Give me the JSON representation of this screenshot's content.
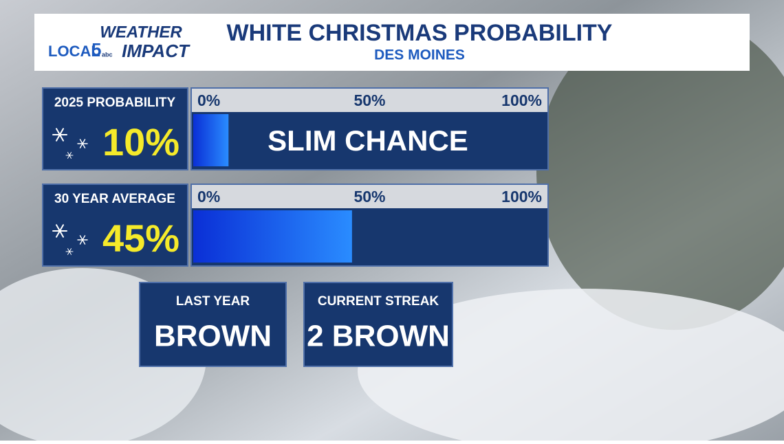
{
  "header": {
    "brand_top": "WEATHER",
    "brand_local": "LOCAL",
    "brand_number": "5",
    "brand_network": "abc",
    "brand_bottom": "IMPACT",
    "title": "WHITE CHRISTMAS PROBABILITY",
    "subtitle": "DES MOINES"
  },
  "scale": {
    "lim": [
      0,
      100
    ],
    "ticks": [
      {
        "value": 0,
        "label": "0%"
      },
      {
        "value": 50,
        "label": "50%"
      },
      {
        "value": 100,
        "label": "100%"
      }
    ]
  },
  "rows": [
    {
      "label": "2025 PROBABILITY",
      "value": 10,
      "value_label": "10%",
      "note": "SLIM CHANCE"
    },
    {
      "label": "30 YEAR AVERAGE",
      "value": 45,
      "value_label": "45%"
    }
  ],
  "boxes": [
    {
      "label": "LAST YEAR",
      "value": "BROWN"
    },
    {
      "label": "CURRENT STREAK",
      "value": "2 BROWN"
    }
  ]
}
